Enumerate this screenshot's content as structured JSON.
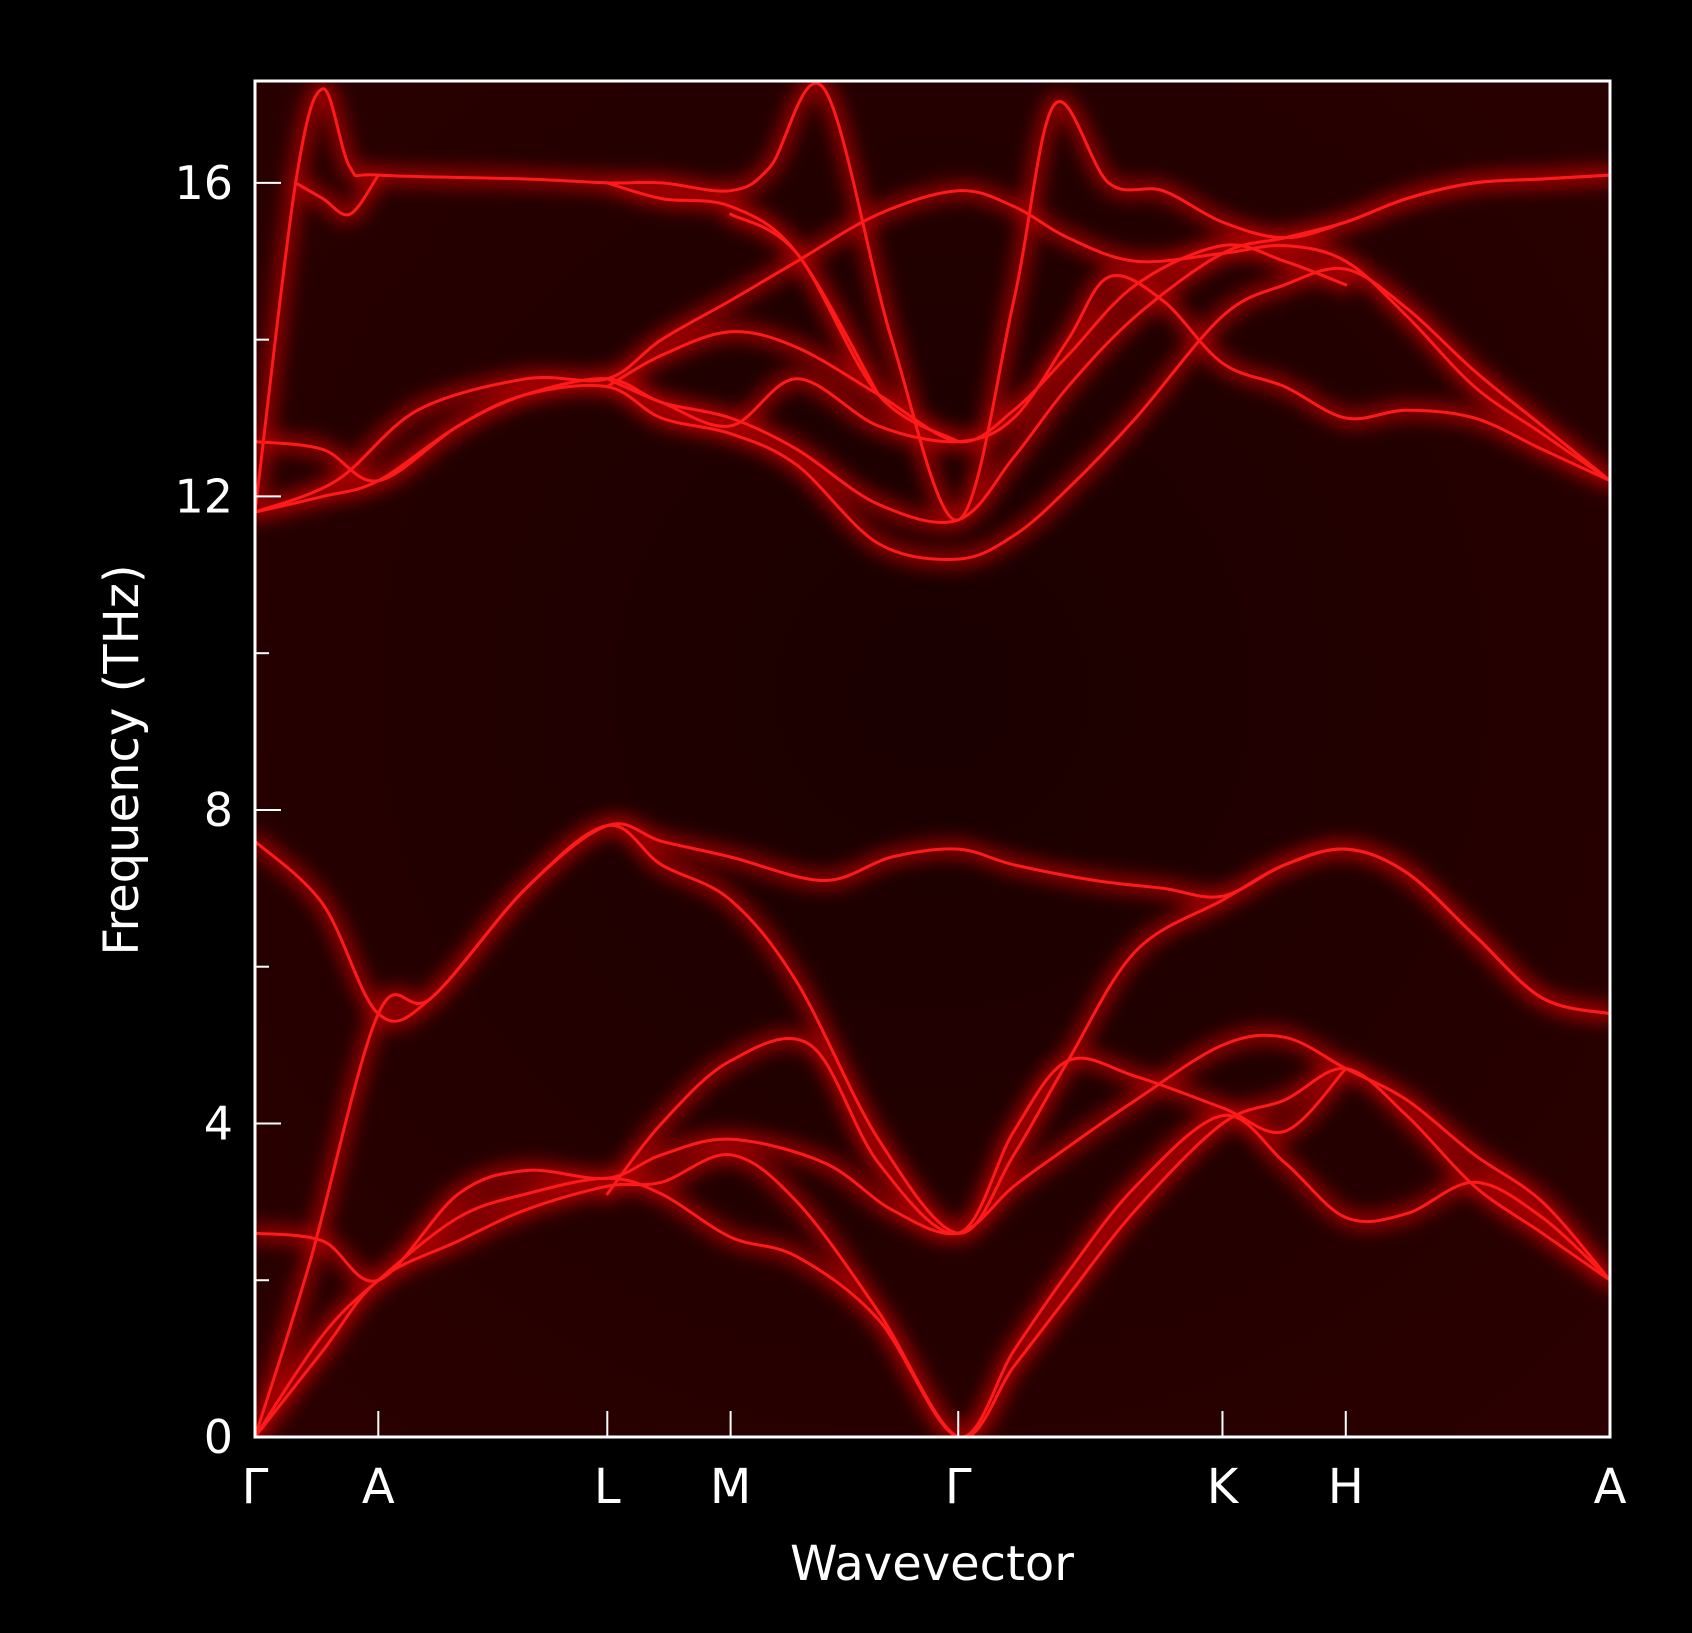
{
  "chart_data": {
    "type": "line",
    "title": "",
    "xlabel": "Wavevector",
    "ylabel": "Frequency (THz)",
    "ylim": [
      0,
      17.3
    ],
    "xlim": [
      0,
      1
    ],
    "y_ticks": [
      0,
      4,
      8,
      12,
      16
    ],
    "y_minor_ticks": [
      2,
      6,
      10,
      14
    ],
    "high_symmetry_points": [
      {
        "label": "Γ",
        "x": 0.0
      },
      {
        "label": "A",
        "x": 0.091
      },
      {
        "label": "L",
        "x": 0.26
      },
      {
        "label": "M",
        "x": 0.351
      },
      {
        "label": "Γ",
        "x": 0.519
      },
      {
        "label": "K",
        "x": 0.714
      },
      {
        "label": "H",
        "x": 0.805
      },
      {
        "label": "A",
        "x": 1.0
      }
    ],
    "colors": {
      "background": "#000000",
      "plot_background": "#1c0000",
      "band": "#ff1a1a",
      "glow": "#b40000",
      "axes": "#ffffff"
    },
    "grid": false,
    "series": [
      {
        "values": [
          [
            0,
            0
          ],
          [
            0.05,
            1.1
          ],
          [
            0.091,
            2.0
          ],
          [
            0.15,
            2.5
          ],
          [
            0.2,
            2.9
          ],
          [
            0.26,
            3.2
          ],
          [
            0.3,
            3.25
          ],
          [
            0.351,
            3.6
          ],
          [
            0.4,
            3.0
          ],
          [
            0.46,
            1.6
          ],
          [
            0.519,
            0
          ],
          [
            0.56,
            0.9
          ],
          [
            0.6,
            1.8
          ],
          [
            0.65,
            2.9
          ],
          [
            0.714,
            4.0
          ],
          [
            0.76,
            4.3
          ],
          [
            0.805,
            4.7
          ],
          [
            0.85,
            4.1
          ],
          [
            0.9,
            3.2
          ],
          [
            0.95,
            2.6
          ],
          [
            1.0,
            2.0
          ]
        ]
      },
      {
        "values": [
          [
            0,
            0
          ],
          [
            0.05,
            1.3
          ],
          [
            0.091,
            2.0
          ],
          [
            0.15,
            2.8
          ],
          [
            0.2,
            3.1
          ],
          [
            0.26,
            3.3
          ],
          [
            0.3,
            3.1
          ],
          [
            0.351,
            2.55
          ],
          [
            0.4,
            2.3
          ],
          [
            0.46,
            1.5
          ],
          [
            0.519,
            0
          ],
          [
            0.56,
            1.1
          ],
          [
            0.6,
            2.1
          ],
          [
            0.65,
            3.2
          ],
          [
            0.714,
            4.1
          ],
          [
            0.76,
            3.5
          ],
          [
            0.805,
            2.8
          ],
          [
            0.85,
            2.85
          ],
          [
            0.9,
            3.25
          ],
          [
            0.95,
            2.8
          ],
          [
            1.0,
            2.0
          ]
        ]
      },
      {
        "values": [
          [
            0,
            0
          ],
          [
            0.04,
            2.2
          ],
          [
            0.091,
            5.4
          ],
          [
            0.13,
            5.6
          ],
          [
            0.2,
            7.0
          ],
          [
            0.26,
            7.8
          ],
          [
            0.3,
            7.6
          ],
          [
            0.351,
            7.4
          ],
          [
            0.42,
            7.1
          ],
          [
            0.47,
            7.4
          ],
          [
            0.519,
            7.5
          ],
          [
            0.56,
            7.3
          ],
          [
            0.62,
            7.1
          ],
          [
            0.67,
            7.0
          ],
          [
            0.714,
            6.9
          ],
          [
            0.76,
            7.3
          ],
          [
            0.805,
            7.5
          ],
          [
            0.85,
            7.2
          ],
          [
            0.9,
            6.4
          ],
          [
            0.95,
            5.6
          ],
          [
            1.0,
            5.4
          ]
        ]
      },
      {
        "values": [
          [
            0,
            7.6
          ],
          [
            0.05,
            6.8
          ],
          [
            0.091,
            5.4
          ],
          [
            0.13,
            5.6
          ],
          [
            0.2,
            7.0
          ],
          [
            0.26,
            7.8
          ],
          [
            0.3,
            7.3
          ],
          [
            0.351,
            6.85
          ],
          [
            0.4,
            5.8
          ],
          [
            0.46,
            3.8
          ],
          [
            0.519,
            2.6
          ],
          [
            0.56,
            3.6
          ],
          [
            0.6,
            4.8
          ],
          [
            0.65,
            6.2
          ],
          [
            0.714,
            6.85
          ],
          [
            0.76,
            7.3
          ],
          [
            0.805,
            7.5
          ],
          [
            0.85,
            7.2
          ],
          [
            0.9,
            6.4
          ],
          [
            0.95,
            5.6
          ],
          [
            1.0,
            5.4
          ]
        ]
      },
      {
        "values": [
          [
            0,
            2.6
          ],
          [
            0.05,
            2.5
          ],
          [
            0.091,
            2.0
          ],
          [
            0.15,
            3.1
          ],
          [
            0.2,
            3.4
          ],
          [
            0.26,
            3.3
          ],
          [
            0.3,
            3.6
          ],
          [
            0.351,
            3.8
          ],
          [
            0.42,
            3.5
          ],
          [
            0.47,
            2.9
          ],
          [
            0.519,
            2.6
          ],
          [
            0.56,
            3.2
          ],
          [
            0.6,
            3.7
          ],
          [
            0.65,
            4.3
          ],
          [
            0.714,
            5.0
          ],
          [
            0.76,
            5.1
          ],
          [
            0.805,
            4.7
          ],
          [
            0.85,
            4.3
          ],
          [
            0.9,
            3.6
          ],
          [
            0.95,
            3.0
          ],
          [
            1.0,
            2.0
          ]
        ]
      },
      {
        "values": [
          [
            0.26,
            3.1
          ],
          [
            0.3,
            4.0
          ],
          [
            0.351,
            4.8
          ],
          [
            0.41,
            5.0
          ],
          [
            0.46,
            3.5
          ],
          [
            0.519,
            2.6
          ],
          [
            0.56,
            3.9
          ],
          [
            0.6,
            4.8
          ],
          [
            0.65,
            4.6
          ],
          [
            0.714,
            4.2
          ],
          [
            0.76,
            3.9
          ],
          [
            0.805,
            4.7
          ]
        ]
      },
      {
        "values": [
          [
            0,
            11.8
          ],
          [
            0.05,
            12.0
          ],
          [
            0.091,
            12.2
          ],
          [
            0.15,
            12.9
          ],
          [
            0.2,
            13.3
          ],
          [
            0.26,
            13.4
          ],
          [
            0.3,
            13.0
          ],
          [
            0.351,
            12.8
          ],
          [
            0.4,
            12.4
          ],
          [
            0.46,
            11.4
          ],
          [
            0.519,
            11.2
          ],
          [
            0.56,
            11.5
          ],
          [
            0.6,
            12.1
          ],
          [
            0.65,
            13.0
          ],
          [
            0.714,
            14.3
          ],
          [
            0.76,
            14.7
          ],
          [
            0.805,
            14.9
          ],
          [
            0.85,
            14.4
          ],
          [
            0.9,
            13.6
          ],
          [
            0.95,
            12.9
          ],
          [
            1.0,
            12.2
          ]
        ]
      },
      {
        "values": [
          [
            0,
            12.7
          ],
          [
            0.05,
            12.6
          ],
          [
            0.091,
            12.2
          ],
          [
            0.15,
            12.9
          ],
          [
            0.2,
            13.3
          ],
          [
            0.26,
            13.5
          ],
          [
            0.3,
            13.2
          ],
          [
            0.351,
            13.0
          ],
          [
            0.4,
            12.6
          ],
          [
            0.46,
            11.9
          ],
          [
            0.519,
            11.7
          ],
          [
            0.56,
            12.5
          ],
          [
            0.6,
            13.4
          ],
          [
            0.65,
            14.3
          ],
          [
            0.714,
            15.1
          ],
          [
            0.76,
            15.3
          ],
          [
            0.805,
            15.5
          ],
          [
            0.85,
            15.8
          ],
          [
            0.9,
            16.0
          ],
          [
            0.95,
            16.05
          ],
          [
            1.0,
            16.1
          ]
        ]
      },
      {
        "values": [
          [
            0,
            11.8
          ],
          [
            0.06,
            12.2
          ],
          [
            0.12,
            13.1
          ],
          [
            0.2,
            13.5
          ],
          [
            0.26,
            13.5
          ],
          [
            0.3,
            14.0
          ],
          [
            0.351,
            14.5
          ],
          [
            0.4,
            15.0
          ],
          [
            0.46,
            15.6
          ],
          [
            0.519,
            15.9
          ],
          [
            0.56,
            15.7
          ],
          [
            0.6,
            15.3
          ],
          [
            0.65,
            15.0
          ],
          [
            0.714,
            15.1
          ],
          [
            0.76,
            15.2
          ],
          [
            0.805,
            15.0
          ],
          [
            0.85,
            14.3
          ],
          [
            0.9,
            13.4
          ],
          [
            0.95,
            12.8
          ],
          [
            1.0,
            12.2
          ]
        ]
      },
      {
        "values": [
          [
            0.26,
            13.4
          ],
          [
            0.3,
            13.8
          ],
          [
            0.351,
            14.1
          ],
          [
            0.4,
            13.9
          ],
          [
            0.46,
            13.3
          ],
          [
            0.519,
            12.7
          ],
          [
            0.56,
            13.1
          ],
          [
            0.6,
            13.8
          ],
          [
            0.65,
            14.7
          ],
          [
            0.714,
            15.2
          ],
          [
            0.76,
            15.0
          ],
          [
            0.805,
            14.7
          ]
        ]
      },
      {
        "values": [
          [
            0.26,
            13.5
          ],
          [
            0.3,
            13.2
          ],
          [
            0.351,
            12.9
          ],
          [
            0.4,
            13.5
          ],
          [
            0.46,
            12.9
          ],
          [
            0.519,
            12.7
          ],
          [
            0.56,
            13.0
          ],
          [
            0.6,
            14.0
          ],
          [
            0.63,
            14.8
          ],
          [
            0.67,
            14.5
          ],
          [
            0.714,
            13.7
          ],
          [
            0.76,
            13.4
          ],
          [
            0.805,
            13.0
          ],
          [
            0.85,
            13.1
          ],
          [
            0.9,
            13.0
          ],
          [
            0.95,
            12.6
          ],
          [
            1.0,
            12.2
          ]
        ]
      },
      {
        "values": [
          [
            0.351,
            15.6
          ],
          [
            0.4,
            15.1
          ],
          [
            0.46,
            13.3
          ],
          [
            0.519,
            12.7
          ]
        ]
      },
      {
        "values": [
          [
            0,
            11.8
          ],
          [
            0.03,
            16.0
          ],
          [
            0.05,
            17.2
          ],
          [
            0.07,
            16.2
          ],
          [
            0.091,
            16.1
          ],
          [
            0.2,
            16.05
          ],
          [
            0.26,
            16.0
          ],
          [
            0.3,
            16.0
          ],
          [
            0.351,
            15.9
          ],
          [
            0.38,
            16.2
          ],
          [
            0.42,
            17.2
          ],
          [
            0.47,
            14.0
          ],
          [
            0.519,
            11.7
          ],
          [
            0.56,
            14.5
          ],
          [
            0.59,
            17.0
          ],
          [
            0.63,
            16.0
          ],
          [
            0.67,
            15.9
          ],
          [
            0.714,
            15.5
          ],
          [
            0.76,
            15.3
          ],
          [
            0.805,
            15.5
          ],
          [
            0.85,
            15.8
          ],
          [
            0.9,
            16.0
          ],
          [
            0.95,
            16.05
          ],
          [
            1.0,
            16.1
          ]
        ]
      },
      {
        "values": [
          [
            0.03,
            16.0
          ],
          [
            0.05,
            15.8
          ],
          [
            0.07,
            15.6
          ],
          [
            0.091,
            16.1
          ]
        ]
      },
      {
        "values": [
          [
            0.26,
            16.0
          ],
          [
            0.3,
            15.8
          ],
          [
            0.351,
            15.7
          ],
          [
            0.4,
            15.1
          ],
          [
            0.46,
            13.3
          ]
        ]
      }
    ]
  }
}
